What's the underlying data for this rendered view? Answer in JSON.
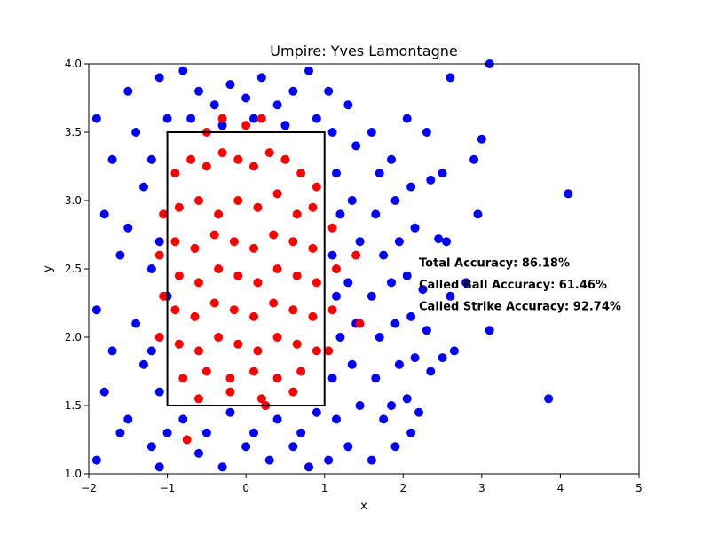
{
  "chart_data": {
    "type": "scatter",
    "title": "Umpire: Yves Lamontagne",
    "xlabel": "x",
    "ylabel": "y",
    "xlim": [
      -2,
      5
    ],
    "ylim": [
      1.0,
      4.0
    ],
    "x_ticks": [
      -2,
      -1,
      0,
      1,
      2,
      3,
      4,
      5
    ],
    "y_ticks": [
      1.0,
      1.5,
      2.0,
      2.5,
      3.0,
      3.5,
      4.0
    ],
    "x_tick_labels": [
      "−2",
      "−1",
      "0",
      "1",
      "2",
      "3",
      "4",
      "5"
    ],
    "y_tick_labels": [
      "1.0",
      "1.5",
      "2.0",
      "2.5",
      "3.0",
      "3.5",
      "4.0"
    ],
    "grid": false,
    "strike_zone": {
      "x": [
        -1,
        1
      ],
      "y": [
        1.5,
        3.5
      ],
      "color": "#000000"
    },
    "annotations": [
      {
        "text": "Total Accuracy: 86.18%",
        "x": 2.2,
        "y": 2.55
      },
      {
        "text": "Called Ball Accuracy: 61.46%",
        "x": 2.2,
        "y": 2.39
      },
      {
        "text": "Called Strike Accuracy: 92.74%",
        "x": 2.2,
        "y": 2.23
      }
    ],
    "series": [
      {
        "color": "#0000ff",
        "points": [
          [
            -1.9,
            3.6
          ],
          [
            -1.7,
            3.3
          ],
          [
            -1.8,
            2.9
          ],
          [
            -1.6,
            2.6
          ],
          [
            -1.9,
            2.2
          ],
          [
            -1.7,
            1.9
          ],
          [
            -1.8,
            1.6
          ],
          [
            -1.6,
            1.3
          ],
          [
            -1.9,
            1.1
          ],
          [
            -1.5,
            3.8
          ],
          [
            -1.4,
            3.5
          ],
          [
            -1.3,
            3.1
          ],
          [
            -1.5,
            2.8
          ],
          [
            -1.2,
            2.5
          ],
          [
            -1.4,
            2.1
          ],
          [
            -1.3,
            1.8
          ],
          [
            -1.5,
            1.4
          ],
          [
            -1.2,
            1.2
          ],
          [
            -1.1,
            3.9
          ],
          [
            -1.0,
            3.6
          ],
          [
            -1.2,
            3.3
          ],
          [
            -1.1,
            2.7
          ],
          [
            -1.0,
            2.3
          ],
          [
            -1.2,
            1.9
          ],
          [
            -1.1,
            1.6
          ],
          [
            -1.0,
            1.3
          ],
          [
            -1.1,
            1.05
          ],
          [
            -0.8,
            3.95
          ],
          [
            -0.6,
            3.8
          ],
          [
            -0.4,
            3.7
          ],
          [
            -0.2,
            3.85
          ],
          [
            0.0,
            3.75
          ],
          [
            0.2,
            3.9
          ],
          [
            0.4,
            3.7
          ],
          [
            0.6,
            3.8
          ],
          [
            0.8,
            3.95
          ],
          [
            -0.7,
            3.6
          ],
          [
            -0.3,
            3.55
          ],
          [
            0.1,
            3.6
          ],
          [
            0.5,
            3.55
          ],
          [
            0.9,
            3.6
          ],
          [
            -0.8,
            1.4
          ],
          [
            -0.5,
            1.3
          ],
          [
            -0.2,
            1.45
          ],
          [
            0.1,
            1.3
          ],
          [
            0.4,
            1.4
          ],
          [
            0.7,
            1.3
          ],
          [
            0.9,
            1.45
          ],
          [
            -0.6,
            1.15
          ],
          [
            -0.3,
            1.05
          ],
          [
            0.0,
            1.2
          ],
          [
            0.3,
            1.1
          ],
          [
            0.6,
            1.2
          ],
          [
            0.8,
            1.05
          ],
          [
            1.05,
            3.8
          ],
          [
            1.1,
            3.5
          ],
          [
            1.15,
            3.2
          ],
          [
            1.2,
            2.9
          ],
          [
            1.1,
            2.6
          ],
          [
            1.15,
            2.3
          ],
          [
            1.2,
            2.0
          ],
          [
            1.1,
            1.7
          ],
          [
            1.15,
            1.4
          ],
          [
            1.05,
            1.1
          ],
          [
            1.3,
            3.7
          ],
          [
            1.4,
            3.4
          ],
          [
            1.35,
            3.0
          ],
          [
            1.45,
            2.7
          ],
          [
            1.3,
            2.4
          ],
          [
            1.4,
            2.1
          ],
          [
            1.35,
            1.8
          ],
          [
            1.45,
            1.5
          ],
          [
            1.3,
            1.2
          ],
          [
            1.6,
            3.5
          ],
          [
            1.7,
            3.2
          ],
          [
            1.65,
            2.9
          ],
          [
            1.75,
            2.6
          ],
          [
            1.6,
            2.3
          ],
          [
            1.7,
            2.0
          ],
          [
            1.65,
            1.7
          ],
          [
            1.75,
            1.4
          ],
          [
            1.6,
            1.1
          ],
          [
            1.85,
            3.3
          ],
          [
            1.9,
            3.0
          ],
          [
            1.95,
            2.7
          ],
          [
            1.85,
            2.4
          ],
          [
            1.9,
            2.1
          ],
          [
            1.95,
            1.8
          ],
          [
            1.85,
            1.5
          ],
          [
            1.9,
            1.2
          ],
          [
            2.05,
            3.6
          ],
          [
            2.1,
            3.1
          ],
          [
            2.15,
            2.8
          ],
          [
            2.05,
            2.45
          ],
          [
            2.1,
            2.15
          ],
          [
            2.15,
            1.85
          ],
          [
            2.05,
            1.55
          ],
          [
            2.1,
            1.3
          ],
          [
            2.3,
            3.5
          ],
          [
            2.35,
            3.15
          ],
          [
            2.25,
            2.35
          ],
          [
            2.3,
            2.05
          ],
          [
            2.35,
            1.75
          ],
          [
            2.2,
            1.45
          ],
          [
            2.6,
            3.9
          ],
          [
            2.5,
            3.2
          ],
          [
            2.55,
            2.7
          ],
          [
            2.6,
            2.3
          ],
          [
            2.5,
            1.85
          ],
          [
            2.65,
            1.9
          ],
          [
            2.9,
            3.3
          ],
          [
            2.95,
            2.9
          ],
          [
            3.0,
            3.45
          ],
          [
            3.1,
            2.05
          ],
          [
            3.1,
            4.0
          ],
          [
            4.1,
            3.05
          ],
          [
            3.85,
            1.55
          ],
          [
            2.45,
            2.72
          ],
          [
            2.8,
            2.4
          ]
        ]
      },
      {
        "color": "#ff0000",
        "points": [
          [
            -0.9,
            3.2
          ],
          [
            -0.7,
            3.3
          ],
          [
            -0.5,
            3.25
          ],
          [
            -0.3,
            3.35
          ],
          [
            -0.1,
            3.3
          ],
          [
            0.1,
            3.25
          ],
          [
            0.3,
            3.35
          ],
          [
            0.5,
            3.3
          ],
          [
            0.7,
            3.2
          ],
          [
            0.9,
            3.1
          ],
          [
            -0.85,
            2.95
          ],
          [
            -0.6,
            3.0
          ],
          [
            -0.35,
            2.9
          ],
          [
            -0.1,
            3.0
          ],
          [
            0.15,
            2.95
          ],
          [
            0.4,
            3.05
          ],
          [
            0.65,
            2.9
          ],
          [
            0.85,
            2.95
          ],
          [
            -0.9,
            2.7
          ],
          [
            -0.65,
            2.65
          ],
          [
            -0.4,
            2.75
          ],
          [
            -0.15,
            2.7
          ],
          [
            0.1,
            2.65
          ],
          [
            0.35,
            2.75
          ],
          [
            0.6,
            2.7
          ],
          [
            0.85,
            2.65
          ],
          [
            -0.85,
            2.45
          ],
          [
            -0.6,
            2.4
          ],
          [
            -0.35,
            2.5
          ],
          [
            -0.1,
            2.45
          ],
          [
            0.15,
            2.4
          ],
          [
            0.4,
            2.5
          ],
          [
            0.65,
            2.45
          ],
          [
            0.9,
            2.4
          ],
          [
            -0.9,
            2.2
          ],
          [
            -0.65,
            2.15
          ],
          [
            -0.4,
            2.25
          ],
          [
            -0.15,
            2.2
          ],
          [
            0.1,
            2.15
          ],
          [
            0.35,
            2.25
          ],
          [
            0.6,
            2.2
          ],
          [
            0.85,
            2.15
          ],
          [
            -0.85,
            1.95
          ],
          [
            -0.6,
            1.9
          ],
          [
            -0.35,
            2.0
          ],
          [
            -0.1,
            1.95
          ],
          [
            0.15,
            1.9
          ],
          [
            0.4,
            2.0
          ],
          [
            0.65,
            1.95
          ],
          [
            0.9,
            1.9
          ],
          [
            -0.8,
            1.7
          ],
          [
            -0.5,
            1.75
          ],
          [
            -0.2,
            1.7
          ],
          [
            0.1,
            1.75
          ],
          [
            0.4,
            1.7
          ],
          [
            0.7,
            1.75
          ],
          [
            -0.6,
            1.55
          ],
          [
            -0.2,
            1.6
          ],
          [
            0.2,
            1.55
          ],
          [
            0.6,
            1.6
          ],
          [
            -0.5,
            3.5
          ],
          [
            -0.3,
            3.6
          ],
          [
            0.0,
            3.55
          ],
          [
            0.2,
            3.6
          ],
          [
            -1.05,
            2.9
          ],
          [
            -1.1,
            2.6
          ],
          [
            -1.05,
            2.3
          ],
          [
            -1.1,
            2.0
          ],
          [
            1.1,
            2.8
          ],
          [
            1.15,
            2.5
          ],
          [
            1.1,
            2.2
          ],
          [
            1.05,
            1.9
          ],
          [
            1.4,
            2.6
          ],
          [
            1.45,
            2.1
          ],
          [
            -0.75,
            1.25
          ],
          [
            0.25,
            1.5
          ]
        ]
      }
    ]
  }
}
